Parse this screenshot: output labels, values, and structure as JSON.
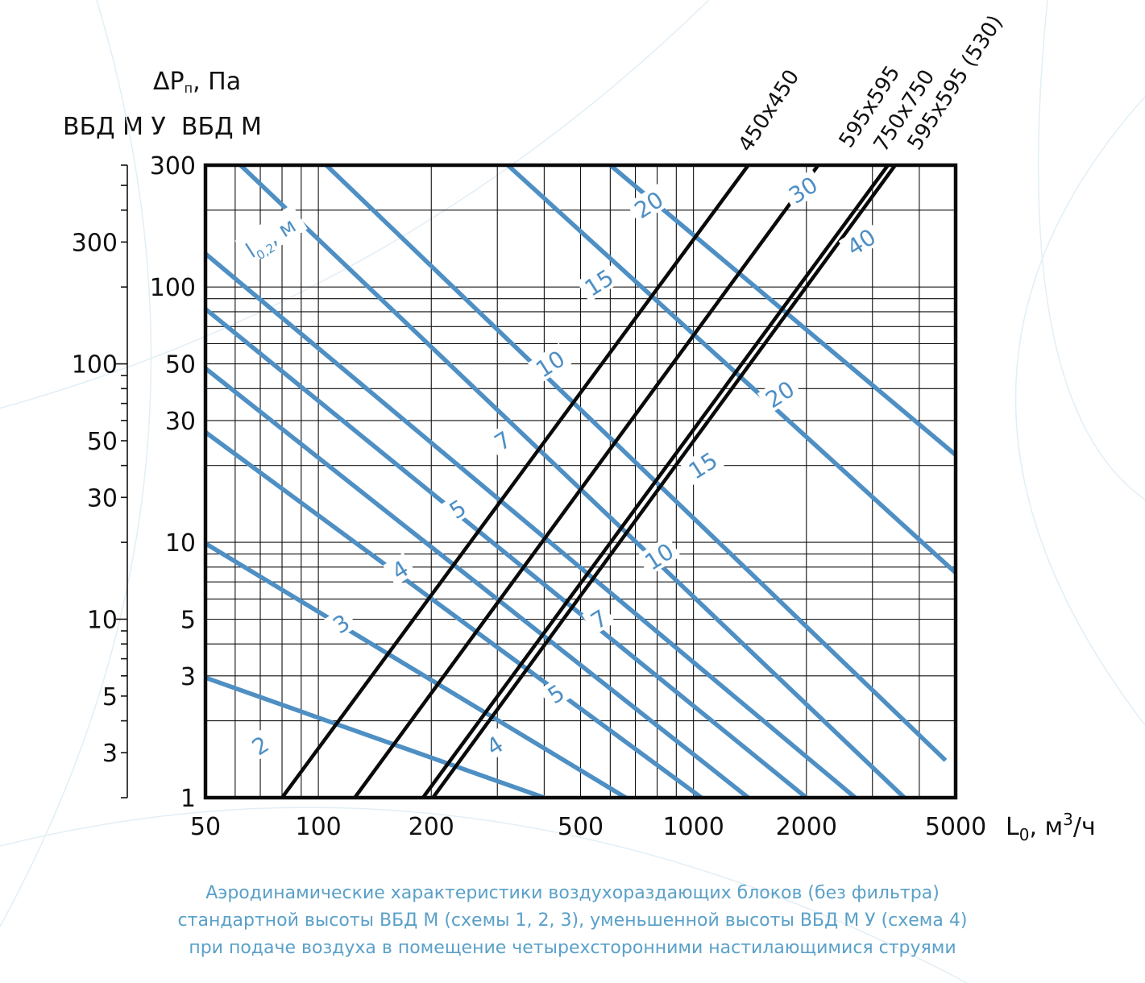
{
  "header": {
    "dp_prefix": "ΔP",
    "dp_sub": "п",
    "dp_suffix": ", Па",
    "scale_names": "ВБД М У  ВБД М"
  },
  "caption": {
    "line1": "Аэродинамические характеристики воздухораздающих блоков (без фильтра)",
    "line2": "стандартной высоты ВБД М (схемы 1, 2, 3), уменьшенной высоты ВБД М У (схема 4)",
    "line3": "при подаче воздуха в помещение четырехсторонними настилающимися струями"
  },
  "chart_data": {
    "type": "line",
    "x_scale": "log",
    "y_scale": "log",
    "xlim": [
      50,
      5000
    ],
    "ylim_vbd_m": [
      1,
      300
    ],
    "ylim_vbd_m_u": [
      2,
      600
    ],
    "xlabel": "L0, м³/ч",
    "ylabel": "ΔPп, Па",
    "y_axis_names": [
      "ВБД М У",
      "ВБД М"
    ],
    "x_ticks": [
      "50",
      "100",
      "200",
      "500",
      "1000",
      "2000",
      "5000"
    ],
    "y_ticks_vbd_m": [
      "1",
      "3",
      "5",
      "10",
      "30",
      "50",
      "100",
      "300"
    ],
    "y_ticks_vbd_m_u": [
      "3",
      "5",
      "10",
      "30",
      "50",
      "100",
      "300"
    ],
    "series": [
      {
        "name": "450x450",
        "points": [
          [
            80,
            1
          ],
          [
            1400,
            300
          ]
        ]
      },
      {
        "name": "595x595",
        "points": [
          [
            125,
            1
          ],
          [
            2150,
            300
          ]
        ]
      },
      {
        "name": "750x750",
        "points": [
          [
            190,
            1
          ],
          [
            3300,
            300
          ]
        ]
      },
      {
        "name": "595x595 (530)",
        "points": [
          [
            202,
            1
          ],
          [
            3450,
            300
          ]
        ]
      }
    ],
    "throw_lines_annotation": "l0,2, м",
    "throw_lines": [
      {
        "label": "2",
        "points": [
          [
            50,
            2.95
          ],
          [
            400,
            1
          ]
        ]
      },
      {
        "label": "3",
        "points": [
          [
            50,
            9.9
          ],
          [
            660,
            1
          ]
        ]
      },
      {
        "label": "4",
        "points": [
          [
            50,
            27
          ],
          [
            1050,
            1
          ]
        ]
      },
      {
        "label": "5",
        "points": [
          [
            50,
            48
          ],
          [
            1400,
            1
          ]
        ]
      },
      {
        "label": "7",
        "points": [
          [
            50,
            82
          ],
          [
            2000,
            1
          ]
        ]
      },
      {
        "label": "10",
        "points": [
          [
            50,
            135
          ],
          [
            2700,
            1
          ]
        ]
      },
      {
        "label": "15",
        "points": [
          [
            62,
            300
          ],
          [
            3650,
            1
          ]
        ]
      },
      {
        "label": "20",
        "points": [
          [
            105,
            300
          ],
          [
            4700,
            1.4
          ]
        ]
      },
      {
        "label": "30",
        "points": [
          [
            320,
            300
          ],
          [
            5000,
            7.6
          ]
        ]
      },
      {
        "label": "40",
        "points": [
          [
            600,
            300
          ],
          [
            5000,
            22
          ]
        ]
      }
    ],
    "throw_labels_left": [
      {
        "label": "2",
        "at": [
          70,
          1.6
        ]
      },
      {
        "label": "3",
        "at": [
          115,
          4.8
        ]
      },
      {
        "label": "4",
        "at": [
          165,
          7.8
        ]
      },
      {
        "label": "5",
        "at": [
          235,
          13.5
        ]
      },
      {
        "label": "7",
        "at": [
          310,
          25
        ]
      },
      {
        "label": "10",
        "at": [
          415,
          50
        ]
      },
      {
        "label": "15",
        "at": [
          560,
          104
        ]
      },
      {
        "label": "20",
        "at": [
          760,
          210
        ]
      }
    ],
    "throw_labels_right": [
      {
        "label": "4",
        "at": [
          295,
          1.6
        ]
      },
      {
        "label": "5",
        "at": [
          430,
          2.55
        ]
      },
      {
        "label": "7",
        "at": [
          560,
          5.0
        ]
      },
      {
        "label": "10",
        "at": [
          810,
          8.8
        ]
      },
      {
        "label": "15",
        "at": [
          1060,
          20
        ]
      },
      {
        "label": "20",
        "at": [
          1700,
          38
        ]
      },
      {
        "label": "30",
        "at": [
          1960,
          240
        ]
      },
      {
        "label": "40",
        "at": [
          2800,
          150
        ]
      }
    ],
    "grid": true
  }
}
